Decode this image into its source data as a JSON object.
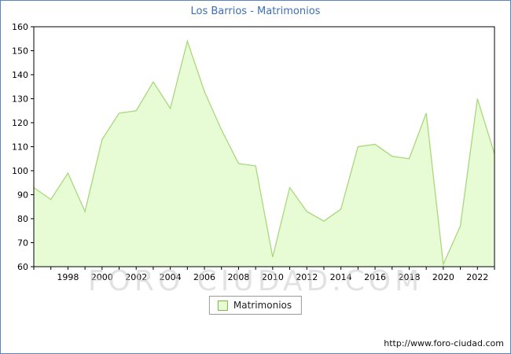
{
  "watermark": {
    "text": "FORO CIUDAD.COM"
  },
  "footer": {
    "url": "http://www.foro-ciudad.com"
  },
  "chart_data": {
    "type": "area",
    "title": "Los Barrios - Matrimonios",
    "legend_label": "Matrimonios",
    "xlabel": "",
    "ylabel": "",
    "ylim": [
      60,
      160
    ],
    "ytick_step": 10,
    "grid": false,
    "legend_position": "bottom-center",
    "x": [
      1996,
      1997,
      1998,
      1999,
      2000,
      2001,
      2002,
      2003,
      2004,
      2005,
      2006,
      2007,
      2008,
      2009,
      2010,
      2011,
      2012,
      2013,
      2014,
      2015,
      2016,
      2017,
      2018,
      2019,
      2020,
      2021,
      2022,
      2023
    ],
    "values": [
      93,
      88,
      99,
      83,
      113,
      124,
      125,
      137,
      126,
      154,
      133,
      117,
      103,
      102,
      64,
      93,
      83,
      79,
      84,
      110,
      111,
      106,
      105,
      124,
      61,
      77,
      130,
      107
    ],
    "xticks_labeled": [
      1998,
      2000,
      2002,
      2004,
      2006,
      2008,
      2010,
      2012,
      2014,
      2016,
      2018,
      2020,
      2022
    ],
    "colors": {
      "area_fill": "#e7fbd4",
      "line": "#a9d87c",
      "axis": "#000000",
      "title": "#3c6eb4",
      "tick_text": "#000000"
    }
  }
}
